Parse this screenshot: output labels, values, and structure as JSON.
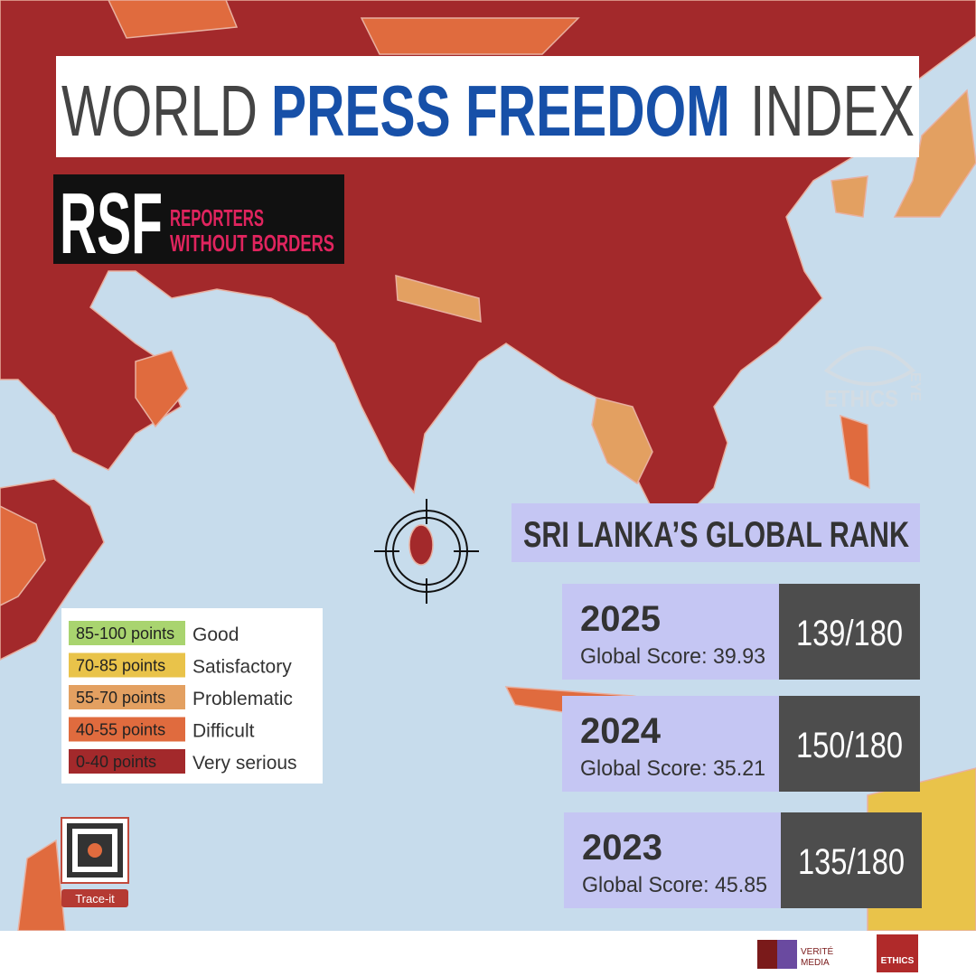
{
  "title": {
    "part1": "WORLD",
    "part2": "PRESS FREEDOM",
    "part3": "INDEX"
  },
  "logo": {
    "mark": "RSF",
    "line1": "REPORTERS",
    "line2": "WITHOUT BORDERS"
  },
  "watermark": {
    "name": "ETHICS",
    "tag": "EYE"
  },
  "legend": [
    {
      "range": "85-100 points",
      "label": "Good",
      "color": "#a9d46f"
    },
    {
      "range": "70-85 points",
      "label": "Satisfactory",
      "color": "#e9c34a"
    },
    {
      "range": "55-70 points",
      "label": "Problematic",
      "color": "#e3a061"
    },
    {
      "range": "40-55 points",
      "label": "Difficult",
      "color": "#e06b3e"
    },
    {
      "range": "0-40 points",
      "label": "Very serious",
      "color": "#a3292b"
    }
  ],
  "rank_panel": {
    "heading": "SRI LANKA’S GLOBAL RANK",
    "rows": [
      {
        "year": "2025",
        "score": "Global Score: 39.93",
        "rank": "139/180"
      },
      {
        "year": "2024",
        "score": "Global Score: 35.21",
        "rank": "150/180"
      },
      {
        "year": "2023",
        "score": "Global Score: 45.85",
        "rank": "135/180"
      }
    ]
  },
  "qr": {
    "caption": "Trace-it"
  },
  "footer": {
    "logo1_top": "VERITÉ",
    "logo1_bottom": "MEDIA",
    "logo2": "ETHICS"
  }
}
